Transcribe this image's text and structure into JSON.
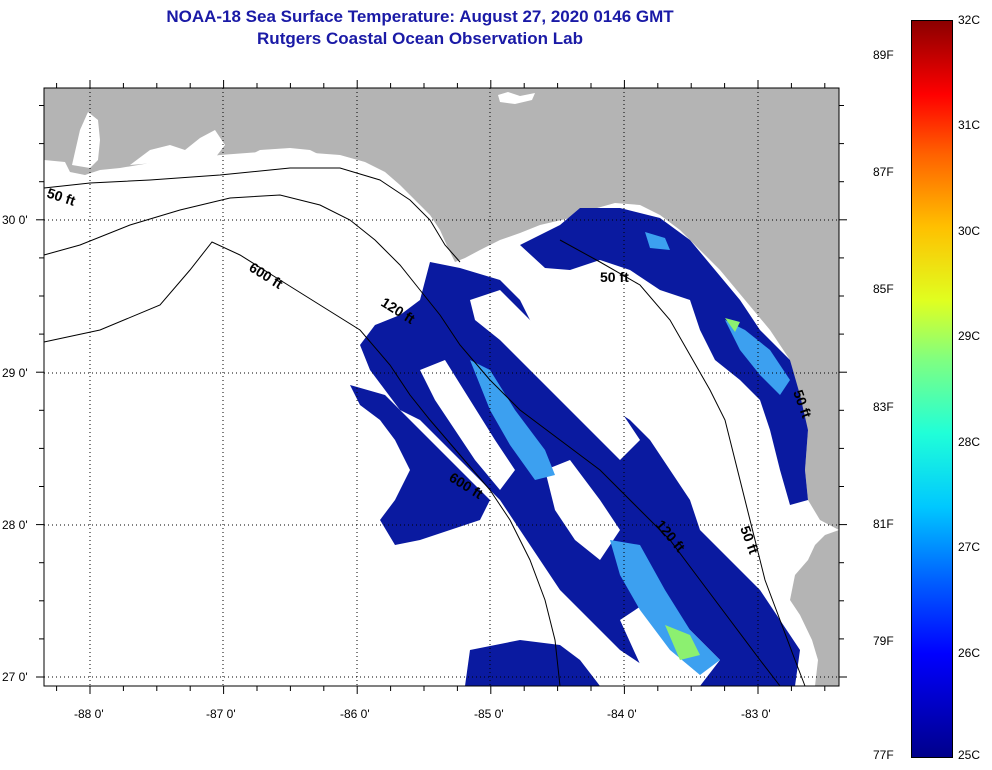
{
  "title": {
    "line1": "NOAA-18 Sea Surface Temperature:  August 27, 2020 0146 GMT",
    "line2": "Rutgers Coastal Ocean Observation Lab"
  },
  "axes": {
    "longitude_labels": [
      "-88 0'",
      "-87 0'",
      "-86 0'",
      "-85 0'",
      "-84 0'",
      "-83 0'"
    ],
    "latitude_labels": [
      "30 0'",
      "29 0'",
      "28 0'",
      "27 0'"
    ]
  },
  "contours": {
    "c50_west": "50 ft",
    "c600_north": "600 ft",
    "c120": "120 ft",
    "c50_east": "50 ft",
    "c600_south": "600 ft",
    "c120_south": "120 ft",
    "c50_south": "50 ft",
    "c50_fl": "50 ft"
  },
  "colorbar": {
    "fahrenheit": [
      {
        "label": "89F",
        "value": 89
      },
      {
        "label": "87F",
        "value": 87
      },
      {
        "label": "85F",
        "value": 85
      },
      {
        "label": "83F",
        "value": 83
      },
      {
        "label": "81F",
        "value": 81
      },
      {
        "label": "79F",
        "value": 79
      },
      {
        "label": "77F",
        "value": 77
      }
    ],
    "celsius": [
      {
        "label": "32C",
        "value": 32
      },
      {
        "label": "31C",
        "value": 31
      },
      {
        "label": "30C",
        "value": 30
      },
      {
        "label": "29C",
        "value": 29
      },
      {
        "label": "28C",
        "value": 28
      },
      {
        "label": "27C",
        "value": 27
      },
      {
        "label": "26C",
        "value": 26
      },
      {
        "label": "25C",
        "value": 25
      }
    ],
    "colors": {
      "low": "#00008b",
      "high": "#8b0000"
    }
  },
  "colors": {
    "land": "#b4b4b4",
    "sst_cold": "#0a1aa0",
    "sst_cool": "#1e46d8",
    "sst_mid": "#3ca0f0",
    "sst_warm": "#8cf070",
    "title": "#1a1aa6"
  }
}
